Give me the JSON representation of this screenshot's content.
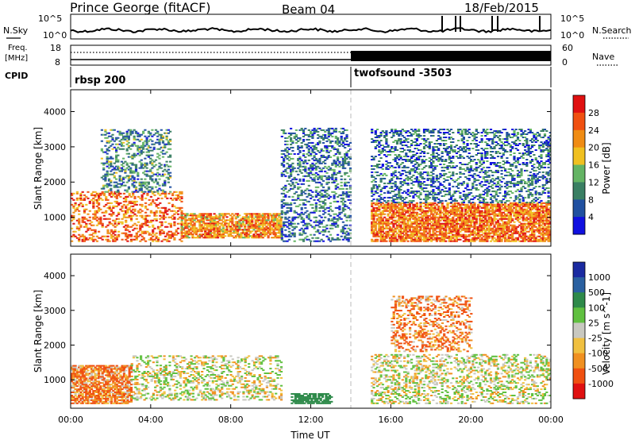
{
  "header": {
    "station": "Prince George (fitACF)",
    "beam": "Beam 04",
    "date": "18/Feb/2015"
  },
  "status_panels": {
    "nsky_label": "N.Sky",
    "nsky_ticks": [
      "10^5",
      "10^0"
    ],
    "nsearch_label": "N.Search",
    "nsearch_ticks": [
      "10^5",
      "10^0"
    ],
    "freq_label_1": "Freq.",
    "freq_label_2": "[MHz]",
    "freq_ticks": [
      "18",
      "8"
    ],
    "nave_label": "Nave",
    "nave_ticks": [
      "60",
      "0"
    ],
    "cpid_label": "CPID",
    "cpid_1": "rbsp 200",
    "cpid_2": "twofsound -3503"
  },
  "colors": {
    "power_scale": [
      "#1010e0",
      "#2050a0",
      "#3a7f63",
      "#64b464",
      "#f0c020",
      "#f08c14",
      "#f05010",
      "#e01010"
    ],
    "velocity_scale": [
      "#e01010",
      "#f05010",
      "#f09020",
      "#f0c040",
      "#c8c8c0",
      "#60c040",
      "#2e8a4a",
      "#2a60a0",
      "#1a2aa0"
    ]
  },
  "chart_data": [
    {
      "type": "heatmap",
      "panel": "power",
      "ylabel": "Slant Range [km]",
      "yticks": [
        "4000",
        "3000",
        "2000",
        "1000"
      ],
      "ylim": [
        180,
        4620
      ],
      "xlabel": "Time UT",
      "xticks": [
        "00:00",
        "04:00",
        "08:00",
        "12:00",
        "16:00",
        "20:00",
        "00:00"
      ],
      "xlim": [
        0,
        24
      ],
      "colorbar_label": "Power [dB]",
      "colorbar_ticks": [
        "28",
        "24",
        "20",
        "16",
        "12",
        "8",
        "4"
      ],
      "approx_backscatter_regions": [
        {
          "t_start": 0.0,
          "t_end": 5.5,
          "range_low": 300,
          "range_high": 1700,
          "power_db": 26
        },
        {
          "t_start": 1.5,
          "t_end": 5.0,
          "range_low": 1700,
          "range_high": 3500,
          "power_db": 12
        },
        {
          "t_start": 5.5,
          "t_end": 10.5,
          "range_low": 400,
          "range_high": 1100,
          "power_db": 24
        },
        {
          "t_start": 10.5,
          "t_end": 14.0,
          "range_low": 300,
          "range_high": 3500,
          "power_db": 10
        },
        {
          "t_start": 15.0,
          "t_end": 24.0,
          "range_low": 300,
          "range_high": 1400,
          "power_db": 26
        },
        {
          "t_start": 15.0,
          "t_end": 24.0,
          "range_low": 1400,
          "range_high": 3500,
          "power_db": 10
        }
      ]
    },
    {
      "type": "heatmap",
      "panel": "velocity",
      "ylabel": "Slant Range [km]",
      "yticks": [
        "4000",
        "3000",
        "2000",
        "1000"
      ],
      "ylim": [
        180,
        4620
      ],
      "xlabel": "Time UT",
      "xticks": [
        "00:00",
        "04:00",
        "08:00",
        "12:00",
        "16:00",
        "20:00",
        "00:00"
      ],
      "xlim": [
        0,
        24
      ],
      "colorbar_label": "Velocity [m s^-1]",
      "colorbar_ticks": [
        "1000",
        "500",
        "100",
        "25",
        "-25",
        "-100",
        "-500",
        "-1000"
      ],
      "approx_backscatter_regions": [
        {
          "t_start": 0.0,
          "t_end": 3.0,
          "range_low": 300,
          "range_high": 1400,
          "velocity": -100
        },
        {
          "t_start": 3.0,
          "t_end": 10.5,
          "range_low": 400,
          "range_high": 1700,
          "velocity": 0
        },
        {
          "t_start": 11.0,
          "t_end": 13.0,
          "range_low": 300,
          "range_high": 600,
          "velocity": 200
        },
        {
          "t_start": 15.0,
          "t_end": 24.0,
          "range_low": 300,
          "range_high": 1700,
          "velocity": 0
        },
        {
          "t_start": 16.0,
          "t_end": 20.0,
          "range_low": 1800,
          "range_high": 3400,
          "velocity": -100
        }
      ]
    }
  ]
}
